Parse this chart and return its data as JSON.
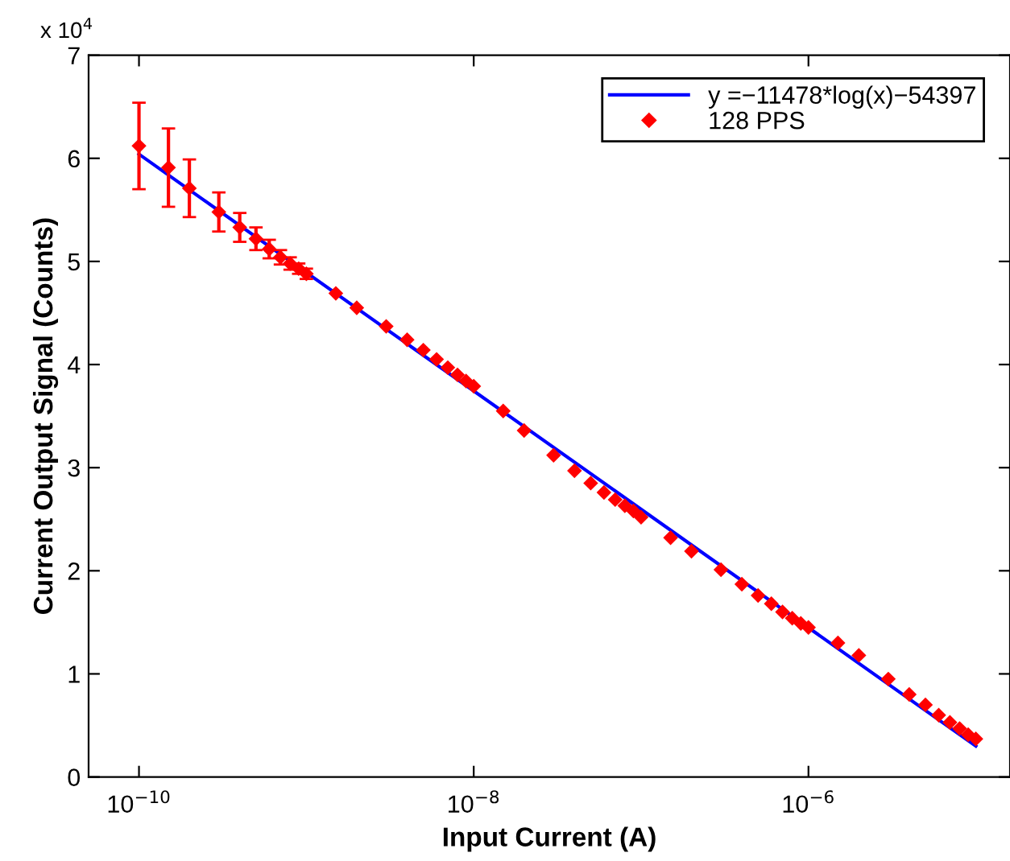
{
  "chart_data": {
    "type": "scatter",
    "xlabel": "Input Current (A)",
    "ylabel": "Current Output Signal (Counts)",
    "annotations": [
      "x 10$^{4}$"
    ],
    "log": "x",
    "grid": false,
    "legend": "top right",
    "xlim": [
      5e-11,
      1.6e-05
    ],
    "xticks": [
      {
        "value": 1e-10,
        "label": "10$^{−10}$"
      },
      {
        "value": 1e-08,
        "label": "10$^{−8}$"
      },
      {
        "value": 1e-06,
        "label": "10$^{−6}$"
      }
    ],
    "ylim": [
      0,
      7
    ],
    "yticks": [
      0,
      1,
      2,
      3,
      4,
      5,
      6,
      7
    ],
    "series": [
      {
        "type": "line",
        "name": "y =−11478*log(x)−54397",
        "color": "#0000ff",
        "line_style": "solid",
        "marker": "none",
        "x": [
          1e-10,
          1e-05
        ],
        "values": [
          6.04,
          0.3
        ]
      },
      {
        "name": "128 PPS",
        "color": "#ff0000",
        "marker": "diamond",
        "x": [
          1e-10,
          1.5e-10,
          2e-10,
          3e-10,
          4e-10,
          5e-10,
          6e-10,
          7e-10,
          8e-10,
          9e-10,
          1e-09,
          1.5e-09,
          2e-09,
          3e-09,
          4e-09,
          5e-09,
          6e-09,
          7e-09,
          8e-09,
          9e-09,
          1e-08,
          1.5e-08,
          2e-08,
          3e-08,
          4e-08,
          5e-08,
          6e-08,
          7e-08,
          8e-08,
          9e-08,
          1e-07,
          1.5e-07,
          2e-07,
          3e-07,
          4e-07,
          5e-07,
          6e-07,
          7e-07,
          8e-07,
          9e-07,
          1e-06,
          1.5e-06,
          2e-06,
          3e-06,
          4e-06,
          5e-06,
          6e-06,
          7e-06,
          8e-06,
          9e-06,
          1e-05
        ],
        "values": [
          6.12,
          5.91,
          5.71,
          5.48,
          5.33,
          5.22,
          5.12,
          5.04,
          4.98,
          4.93,
          4.88,
          4.69,
          4.55,
          4.37,
          4.24,
          4.14,
          4.05,
          3.97,
          3.9,
          3.84,
          3.79,
          3.55,
          3.36,
          3.12,
          2.97,
          2.85,
          2.76,
          2.69,
          2.63,
          2.58,
          2.52,
          2.32,
          2.19,
          2.01,
          1.87,
          1.76,
          1.68,
          1.6,
          1.54,
          1.49,
          1.45,
          1.3,
          1.18,
          0.95,
          0.8,
          0.7,
          0.6,
          0.53,
          0.47,
          0.41,
          0.37
        ],
        "errors": [
          0.42,
          0.38,
          0.28,
          0.19,
          0.14,
          0.11,
          0.09,
          0.07,
          0.06,
          0.05,
          0.05,
          null,
          null,
          null,
          null,
          null,
          null,
          null,
          null,
          null,
          null,
          null,
          null,
          null,
          null,
          null,
          null,
          null,
          null,
          null,
          null,
          null,
          null,
          null,
          null,
          null,
          null,
          null,
          null,
          null,
          null,
          null,
          null,
          null,
          null,
          null,
          null,
          null,
          null,
          null,
          null
        ]
      }
    ]
  }
}
